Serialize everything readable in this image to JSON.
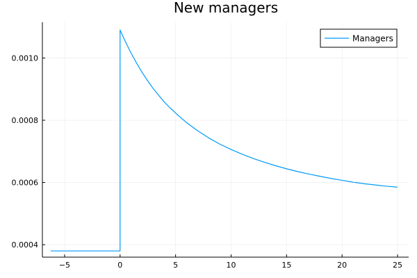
{
  "chart_data": {
    "type": "line",
    "title": "New managers",
    "xlabel": "",
    "ylabel": "",
    "xlim": [
      -7.0,
      26.0
    ],
    "ylim": [
      0.00036,
      0.001115
    ],
    "xticks": [
      -5,
      0,
      5,
      10,
      15,
      20,
      25
    ],
    "xtick_labels": [
      "−5",
      "0",
      "5",
      "10",
      "15",
      "20",
      "25"
    ],
    "yticks": [
      0.0004,
      0.0006,
      0.0008,
      0.001
    ],
    "ytick_labels": [
      "0.0004",
      "0.0006",
      "0.0008",
      "0.0010"
    ],
    "grid": true,
    "legend_position": "top-right",
    "series": [
      {
        "name": "Managers",
        "color": "#009af9",
        "x": [
          -6.25,
          -5,
          -4,
          -3,
          -2,
          -1,
          0,
          0,
          0.5,
          1,
          1.5,
          2,
          2.5,
          3,
          3.5,
          4,
          4.5,
          5,
          6,
          7,
          8,
          9,
          10,
          11,
          12,
          13,
          14,
          15,
          16,
          17,
          18,
          19,
          20,
          21,
          22,
          23,
          24,
          25
        ],
        "y": [
          0.00038,
          0.00038,
          0.00038,
          0.00038,
          0.00038,
          0.00038,
          0.00038,
          0.00109,
          0.001051,
          0.001015,
          0.000983,
          0.000953,
          0.000926,
          0.000901,
          0.000879,
          0.000858,
          0.00084,
          0.000823,
          0.000792,
          0.000766,
          0.000743,
          0.000723,
          0.000706,
          0.000691,
          0.000677,
          0.000665,
          0.000654,
          0.000644,
          0.000635,
          0.000627,
          0.00062,
          0.000613,
          0.000607,
          0.000601,
          0.000596,
          0.000592,
          0.000588,
          0.000585
        ]
      }
    ]
  }
}
